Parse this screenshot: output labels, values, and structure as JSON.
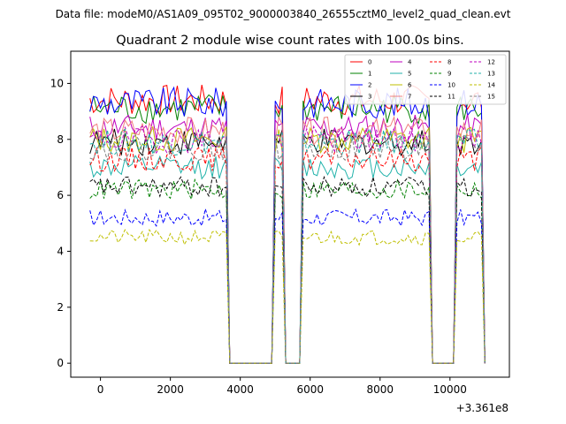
{
  "figure": {
    "suptitle": "Data file: modeM0/AS1A09_095T02_9000003840_26555cztM0_level2_quad_clean.evt",
    "title": "Quadrant 2 module wise count rates with 100.0s bins.",
    "offset_label": "+3.361e8"
  },
  "chart_data": {
    "type": "line",
    "title": "Quadrant 2 module wise count rates with 100.0s bins.",
    "xlabel": "",
    "ylabel": "",
    "x_offset": 336100000,
    "xlim": [
      -850,
      11700
    ],
    "ylim": [
      -0.5,
      11.15
    ],
    "xticks": [
      0,
      2000,
      4000,
      6000,
      8000,
      10000
    ],
    "yticks": [
      0,
      2,
      4,
      6,
      8,
      10
    ],
    "legend_position": "top-right",
    "bin_seconds": 100,
    "x_start": -300,
    "segments": [
      {
        "start": -300,
        "end": 3600
      },
      {
        "start": 5000,
        "end": 5200
      },
      {
        "start": 5800,
        "end": 9400
      },
      {
        "start": 10200,
        "end": 10900
      }
    ],
    "series": [
      {
        "name": "0",
        "color": "#ff0000",
        "dash": "solid",
        "level": 9.4
      },
      {
        "name": "1",
        "color": "#008000",
        "dash": "solid",
        "level": 9.1
      },
      {
        "name": "2",
        "color": "#0000ff",
        "dash": "solid",
        "level": 9.3
      },
      {
        "name": "3",
        "color": "#000000",
        "dash": "solid",
        "level": 7.9
      },
      {
        "name": "4",
        "color": "#bf00bf",
        "dash": "solid",
        "level": 8.4
      },
      {
        "name": "5",
        "color": "#20b2aa",
        "dash": "solid",
        "level": 7.0
      },
      {
        "name": "6",
        "color": "#bfbf00",
        "dash": "solid",
        "level": 8.0
      },
      {
        "name": "7",
        "color": "#f08080",
        "dash": "solid",
        "level": 8.3
      },
      {
        "name": "8",
        "color": "#ff0000",
        "dash": "dashed",
        "level": 7.3
      },
      {
        "name": "9",
        "color": "#008000",
        "dash": "dashed",
        "level": 6.2
      },
      {
        "name": "10",
        "color": "#0000ff",
        "dash": "dashed",
        "level": 5.2
      },
      {
        "name": "11",
        "color": "#000000",
        "dash": "dashed",
        "level": 6.3
      },
      {
        "name": "12",
        "color": "#bf00bf",
        "dash": "dashed",
        "level": 8.0
      },
      {
        "name": "13",
        "color": "#20b2aa",
        "dash": "dashed",
        "level": 7.9
      },
      {
        "name": "14",
        "color": "#bfbf00",
        "dash": "dashed",
        "level": 4.5
      },
      {
        "name": "15",
        "color": "#808080",
        "dash": "dashed",
        "level": 7.7
      }
    ]
  }
}
